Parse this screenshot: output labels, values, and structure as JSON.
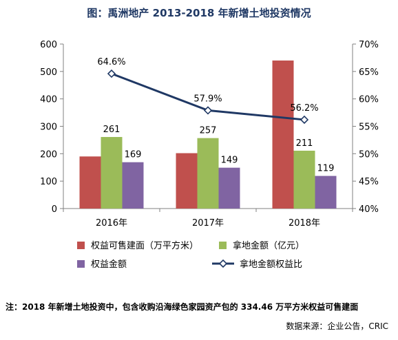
{
  "title": "图：禹洲地产 2013-2018 年新增土地投资情况",
  "note": "注：2018 年新增土地投资中，包含收购沿海绿色家园资产包的 334.46 万平方米权益可售建面",
  "source": "数据来源：企业公告，CRIC",
  "colors": {
    "series1": "#c0504d",
    "series2": "#9bbb59",
    "series3": "#8064a2",
    "line": "#1f3864"
  },
  "chart_data": {
    "type": "bar",
    "title": "图：禹洲地产 2013-2018 年新增土地投资情况",
    "categories": [
      "2016年",
      "2017年",
      "2018年"
    ],
    "ylim": [
      0,
      600
    ],
    "yticks": [
      "0",
      "100",
      "200",
      "300",
      "400",
      "500",
      "600"
    ],
    "y2lim": [
      40,
      70
    ],
    "y2ticks": [
      "40%",
      "45%",
      "50%",
      "55%",
      "60%",
      "65%",
      "70%"
    ],
    "series": [
      {
        "name": "权益可售建面（万平方米）",
        "values": [
          190,
          202,
          540
        ],
        "axis": "left",
        "type": "bar"
      },
      {
        "name": "拿地金额（亿元）",
        "values": [
          261,
          257,
          211
        ],
        "labels": [
          "261",
          "257",
          "211"
        ],
        "axis": "left",
        "type": "bar"
      },
      {
        "name": "权益金额",
        "values": [
          169,
          149,
          119
        ],
        "labels": [
          "169",
          "149",
          "119"
        ],
        "axis": "left",
        "type": "bar"
      },
      {
        "name": "拿地金额权益比",
        "values": [
          64.6,
          57.9,
          56.2
        ],
        "labels": [
          "64.6%",
          "57.9%",
          "56.2%"
        ],
        "axis": "right",
        "type": "line"
      }
    ],
    "legend": "bottom",
    "grid": false
  }
}
